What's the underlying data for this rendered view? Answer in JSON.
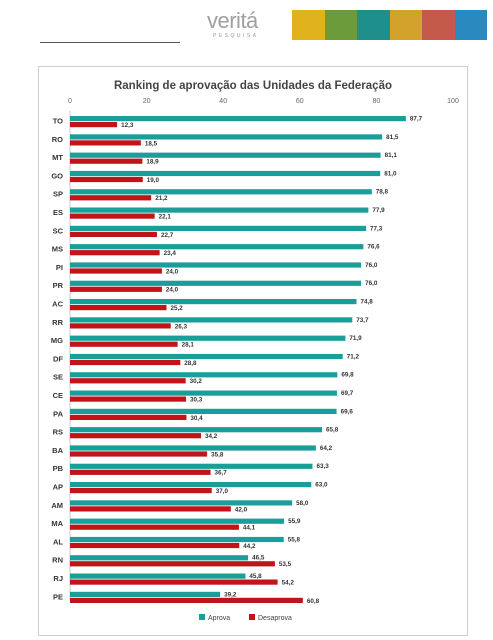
{
  "header": {
    "logo_text": "veritá",
    "logo_sub": "PESQUISA"
  },
  "colors": {
    "aprova": "#1a9e9a",
    "desaprova": "#c01418",
    "banner": [
      "#e0b21c",
      "#6b9b3a",
      "#1f8f8c",
      "#d2a22a",
      "#c45a4a",
      "#2a8ac0"
    ]
  },
  "chart_data": {
    "type": "bar",
    "orientation": "horizontal",
    "title": "Ranking de aprovação das Unidades da Federação",
    "categories": [
      "TO",
      "RO",
      "MT",
      "GO",
      "SP",
      "ES",
      "SC",
      "MS",
      "PI",
      "PR",
      "AC",
      "RR",
      "MG",
      "DF",
      "SE",
      "CE",
      "PA",
      "RS",
      "BA",
      "PB",
      "AP",
      "AM",
      "MA",
      "AL",
      "RN",
      "RJ",
      "PE"
    ],
    "series": [
      {
        "name": "Aprova",
        "values": [
          87.7,
          81.5,
          81.1,
          81.0,
          78.8,
          77.9,
          77.3,
          76.6,
          76.0,
          76.0,
          74.8,
          73.7,
          71.9,
          71.2,
          69.8,
          69.7,
          69.6,
          65.8,
          64.2,
          63.3,
          63.0,
          58.0,
          55.9,
          55.8,
          46.5,
          45.8,
          39.2
        ]
      },
      {
        "name": "Desaprova",
        "values": [
          12.3,
          18.5,
          18.9,
          19.0,
          21.2,
          22.1,
          22.7,
          23.4,
          24.0,
          24.0,
          25.2,
          26.3,
          28.1,
          28.8,
          30.2,
          30.3,
          30.4,
          34.2,
          35.8,
          36.7,
          37.0,
          42.0,
          44.1,
          44.2,
          53.5,
          54.2,
          60.8
        ]
      }
    ],
    "labels_aprova": [
      "87,7",
      "81,5",
      "81,1",
      "81,0",
      "78,8",
      "77,9",
      "77,3",
      "76,6",
      "76,0",
      "76,0",
      "74,8",
      "73,7",
      "71,9",
      "71,2",
      "69,8",
      "69,7",
      "69,6",
      "65,8",
      "64,2",
      "63,3",
      "63,0",
      "58,0",
      "55,9",
      "55,8",
      "46,5",
      "45,8",
      "39,2"
    ],
    "labels_desaprova": [
      "12,3",
      "18,5",
      "18,9",
      "19,0",
      "21,2",
      "22,1",
      "22,7",
      "23,4",
      "24,0",
      "24,0",
      "25,2",
      "26,3",
      "28,1",
      "28,8",
      "30,2",
      "30,3",
      "30,4",
      "34,2",
      "35,8",
      "36,7",
      "37,0",
      "42,0",
      "44,1",
      "44,2",
      "53,5",
      "54,2",
      "60,8"
    ],
    "xlim": [
      0,
      100
    ],
    "xticks": [
      "0",
      "20",
      "40",
      "60",
      "80",
      "100"
    ],
    "legend_position": "bottom",
    "grid": false
  }
}
